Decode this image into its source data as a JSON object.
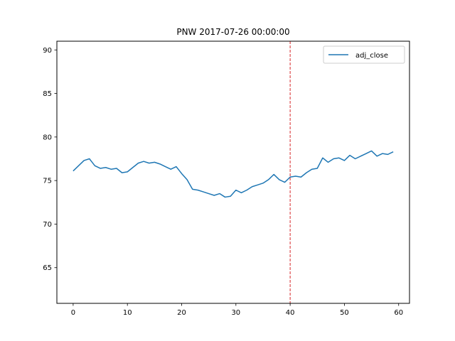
{
  "chart_data": {
    "type": "line",
    "title": "PNW 2017-07-26 00:00:00",
    "xlabel": "",
    "ylabel": "",
    "xlim": [
      -3,
      62
    ],
    "ylim": [
      60.9,
      91
    ],
    "x_ticks": [
      0,
      10,
      20,
      30,
      40,
      50,
      60
    ],
    "y_ticks": [
      65,
      70,
      75,
      80,
      85,
      90
    ],
    "grid": false,
    "legend_placement": "top-right",
    "series": [
      {
        "name": "adj_close",
        "color": "#1f77b4",
        "x": [
          0,
          1,
          2,
          3,
          4,
          5,
          6,
          7,
          8,
          9,
          10,
          11,
          12,
          13,
          14,
          15,
          16,
          17,
          18,
          19,
          20,
          21,
          22,
          23,
          24,
          25,
          26,
          27,
          28,
          29,
          30,
          31,
          32,
          33,
          34,
          35,
          36,
          37,
          38,
          39,
          40,
          41,
          42,
          43,
          44,
          45,
          46,
          47,
          48,
          49,
          50,
          51,
          52,
          53,
          54,
          55,
          56,
          57,
          58,
          59
        ],
        "values": [
          76.1,
          76.7,
          77.3,
          77.5,
          76.7,
          76.4,
          76.5,
          76.3,
          76.4,
          75.9,
          76.0,
          76.5,
          77.0,
          77.2,
          77.0,
          77.1,
          76.9,
          76.6,
          76.3,
          76.6,
          75.8,
          75.1,
          74.0,
          73.9,
          73.7,
          73.5,
          73.3,
          73.5,
          73.1,
          73.2,
          73.9,
          73.6,
          73.9,
          74.3,
          74.5,
          74.7,
          75.1,
          75.7,
          75.1,
          74.8,
          75.4,
          75.5,
          75.4,
          75.9,
          76.3,
          76.4,
          77.6,
          77.1,
          77.5,
          77.6,
          77.3,
          77.9,
          77.5,
          77.8,
          78.1,
          78.4,
          77.8,
          78.1,
          78.0,
          78.3
        ]
      }
    ],
    "annotations": [
      {
        "type": "vline",
        "x": 40,
        "color": "#d62728",
        "style": "dashed"
      }
    ]
  }
}
